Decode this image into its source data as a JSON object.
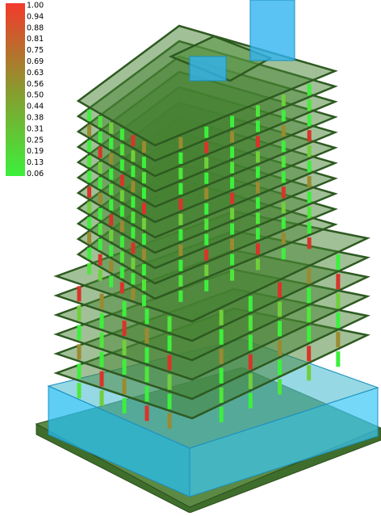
{
  "legend": {
    "labels": [
      "1.00",
      "0.94",
      "0.88",
      "0.81",
      "0.75",
      "0.69",
      "0.63",
      "0.56",
      "0.50",
      "0.44",
      "0.38",
      "0.31",
      "0.25",
      "0.19",
      "0.13",
      "0.06"
    ]
  }
}
